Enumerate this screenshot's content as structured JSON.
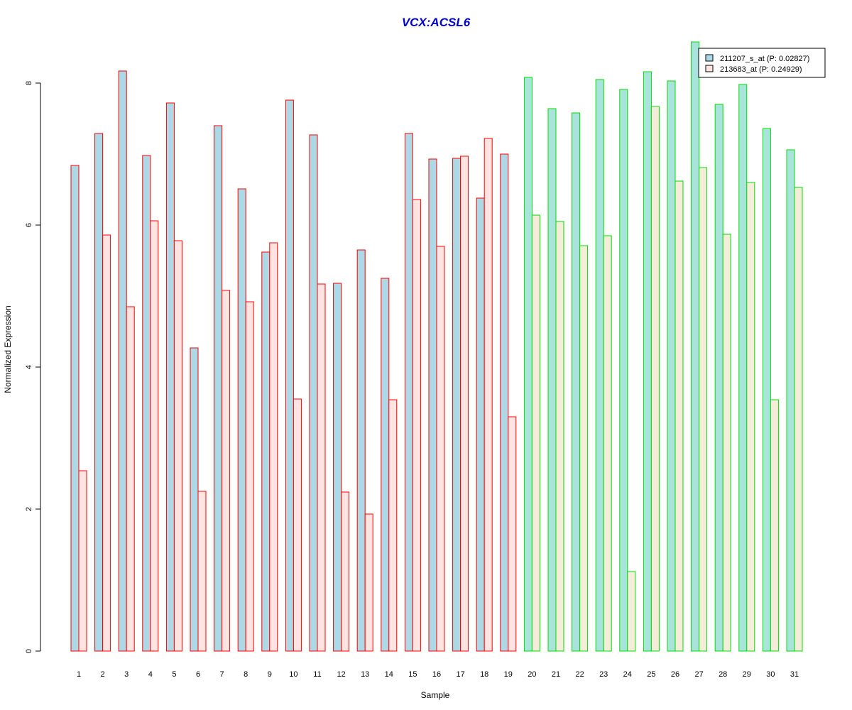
{
  "chart_data": {
    "type": "bar",
    "title": "VCX:ACSL6",
    "xlabel": "Sample",
    "ylabel": "Normalized Expression",
    "ylim": [
      0,
      8.6
    ],
    "yticks": [
      0,
      2,
      4,
      6,
      8
    ],
    "categories": [
      "1",
      "2",
      "3",
      "4",
      "5",
      "6",
      "7",
      "8",
      "9",
      "10",
      "11",
      "12",
      "13",
      "14",
      "15",
      "16",
      "17",
      "18",
      "19",
      "20",
      "21",
      "22",
      "23",
      "24",
      "25",
      "26",
      "27",
      "28",
      "29",
      "30",
      "31"
    ],
    "groups": {
      "group1": {
        "samples": "1-19",
        "border_color": "#ff0000"
      },
      "group2": {
        "samples": "20-31",
        "border_color": "#00dd00"
      }
    },
    "series": [
      {
        "name": "211207_s_at (P: 0.02827)",
        "fill_group1": "#add8e6",
        "fill_group2": "#a8e4dc",
        "values": [
          6.84,
          7.29,
          8.17,
          6.98,
          7.72,
          4.27,
          7.4,
          6.51,
          5.62,
          7.76,
          7.27,
          5.18,
          5.65,
          5.25,
          7.29,
          6.93,
          6.94,
          6.38,
          7.0,
          8.08,
          7.64,
          7.58,
          8.05,
          7.91,
          8.16,
          8.03,
          8.58,
          7.7,
          7.98,
          7.36,
          7.06
        ]
      },
      {
        "name": "213683_at (P: 0.24929)",
        "fill_group1": "#ffe4e1",
        "fill_group2": "#f5ecd9",
        "values": [
          2.54,
          5.86,
          4.85,
          6.06,
          5.78,
          2.25,
          5.08,
          4.92,
          5.75,
          3.55,
          5.17,
          2.24,
          1.93,
          3.54,
          6.36,
          5.7,
          6.97,
          7.22,
          3.3,
          6.14,
          6.05,
          5.71,
          5.85,
          1.12,
          7.67,
          6.62,
          6.81,
          5.87,
          6.6,
          3.54,
          6.53
        ]
      }
    ],
    "legend_position": "top-right",
    "grid": false,
    "colors": {
      "title": "#0000cc",
      "axis": "#000000"
    }
  }
}
